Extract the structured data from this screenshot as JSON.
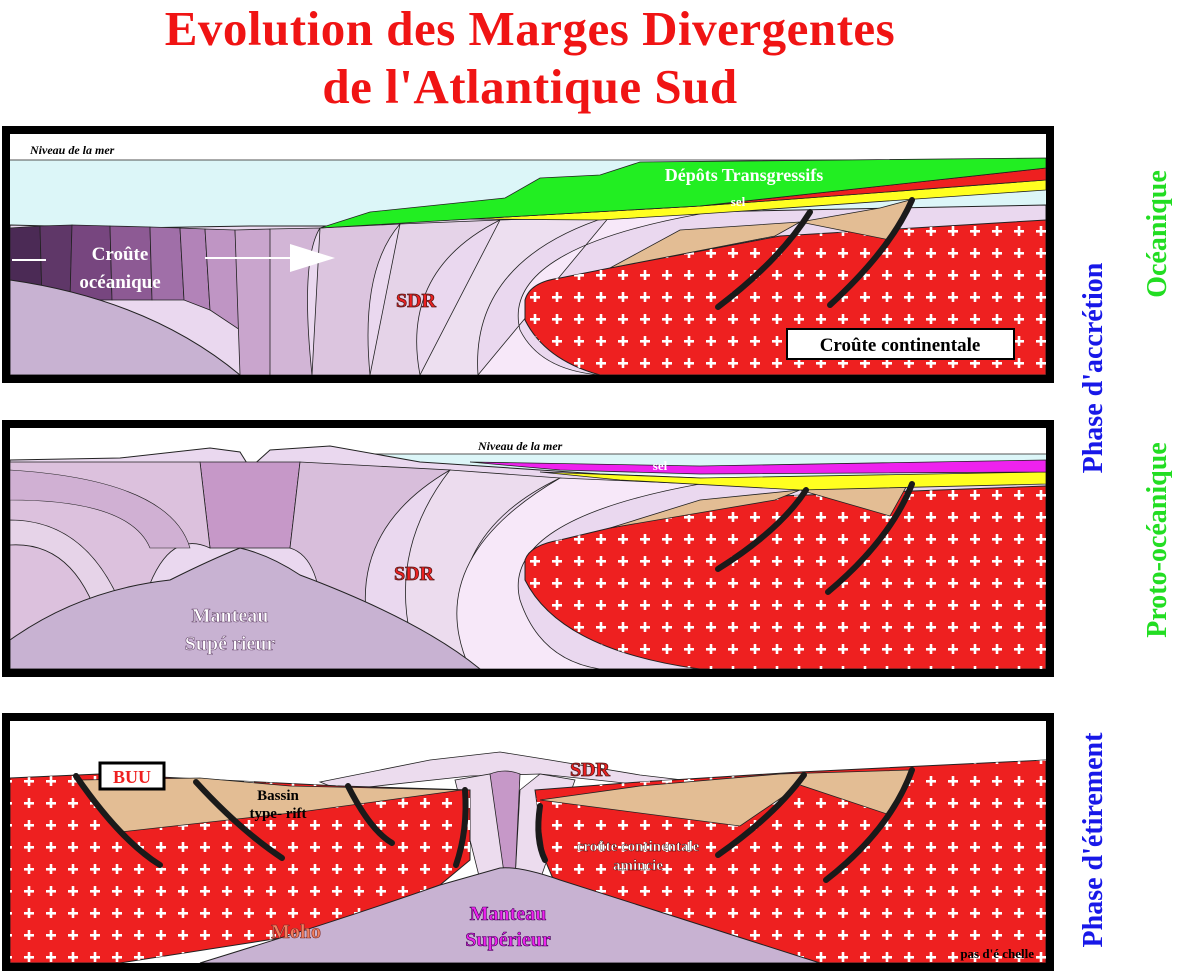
{
  "title": {
    "line1": "Evolution des Marges Divergentes",
    "line2": "de l'Atlantique Sud"
  },
  "panel1": {
    "sea_level": "Niveau de la mer",
    "depots": "Dépôts Transgressifs",
    "sel": "sel",
    "croute_oceanique_1": "Croûte",
    "croute_oceanique_2": "océanique",
    "sdr": "SDR",
    "croute_continentale": "Croûte continentale"
  },
  "panel2": {
    "sea_level": "Niveau de la mer",
    "sel": "sel",
    "sdr": "SDR",
    "manteau_1": "Manteau",
    "manteau_2": "Supé rieur"
  },
  "panel3": {
    "buu": "BUU",
    "bassin_1": "Bassin",
    "bassin_2": "type- rift",
    "sdr": "SDR",
    "croute_1": "croûte continentale",
    "croute_2": "amincie",
    "manteau_1": "Manteau",
    "manteau_2": "Supérieur",
    "moho": "Moho",
    "echelle": "pas d'é chelle"
  },
  "side": {
    "oceanique": "Océanique",
    "phase_accretion": "Phase d'accrétion",
    "proto_oceanique": "Proto-océanique",
    "phase_etirement": "Phase d'étirement"
  },
  "colors": {
    "title": "#f01414",
    "crust_red": "#ee2020",
    "rift_tan": "#e3bd94",
    "sediment_green": "#22ee22",
    "salt_magenta": "#ee22ee",
    "salt_yellow": "#ffff20",
    "sea": "#dcf6f8",
    "mantle": "#c8b2d2",
    "side_blue": "#1818e8",
    "side_green": "#22dd22"
  }
}
